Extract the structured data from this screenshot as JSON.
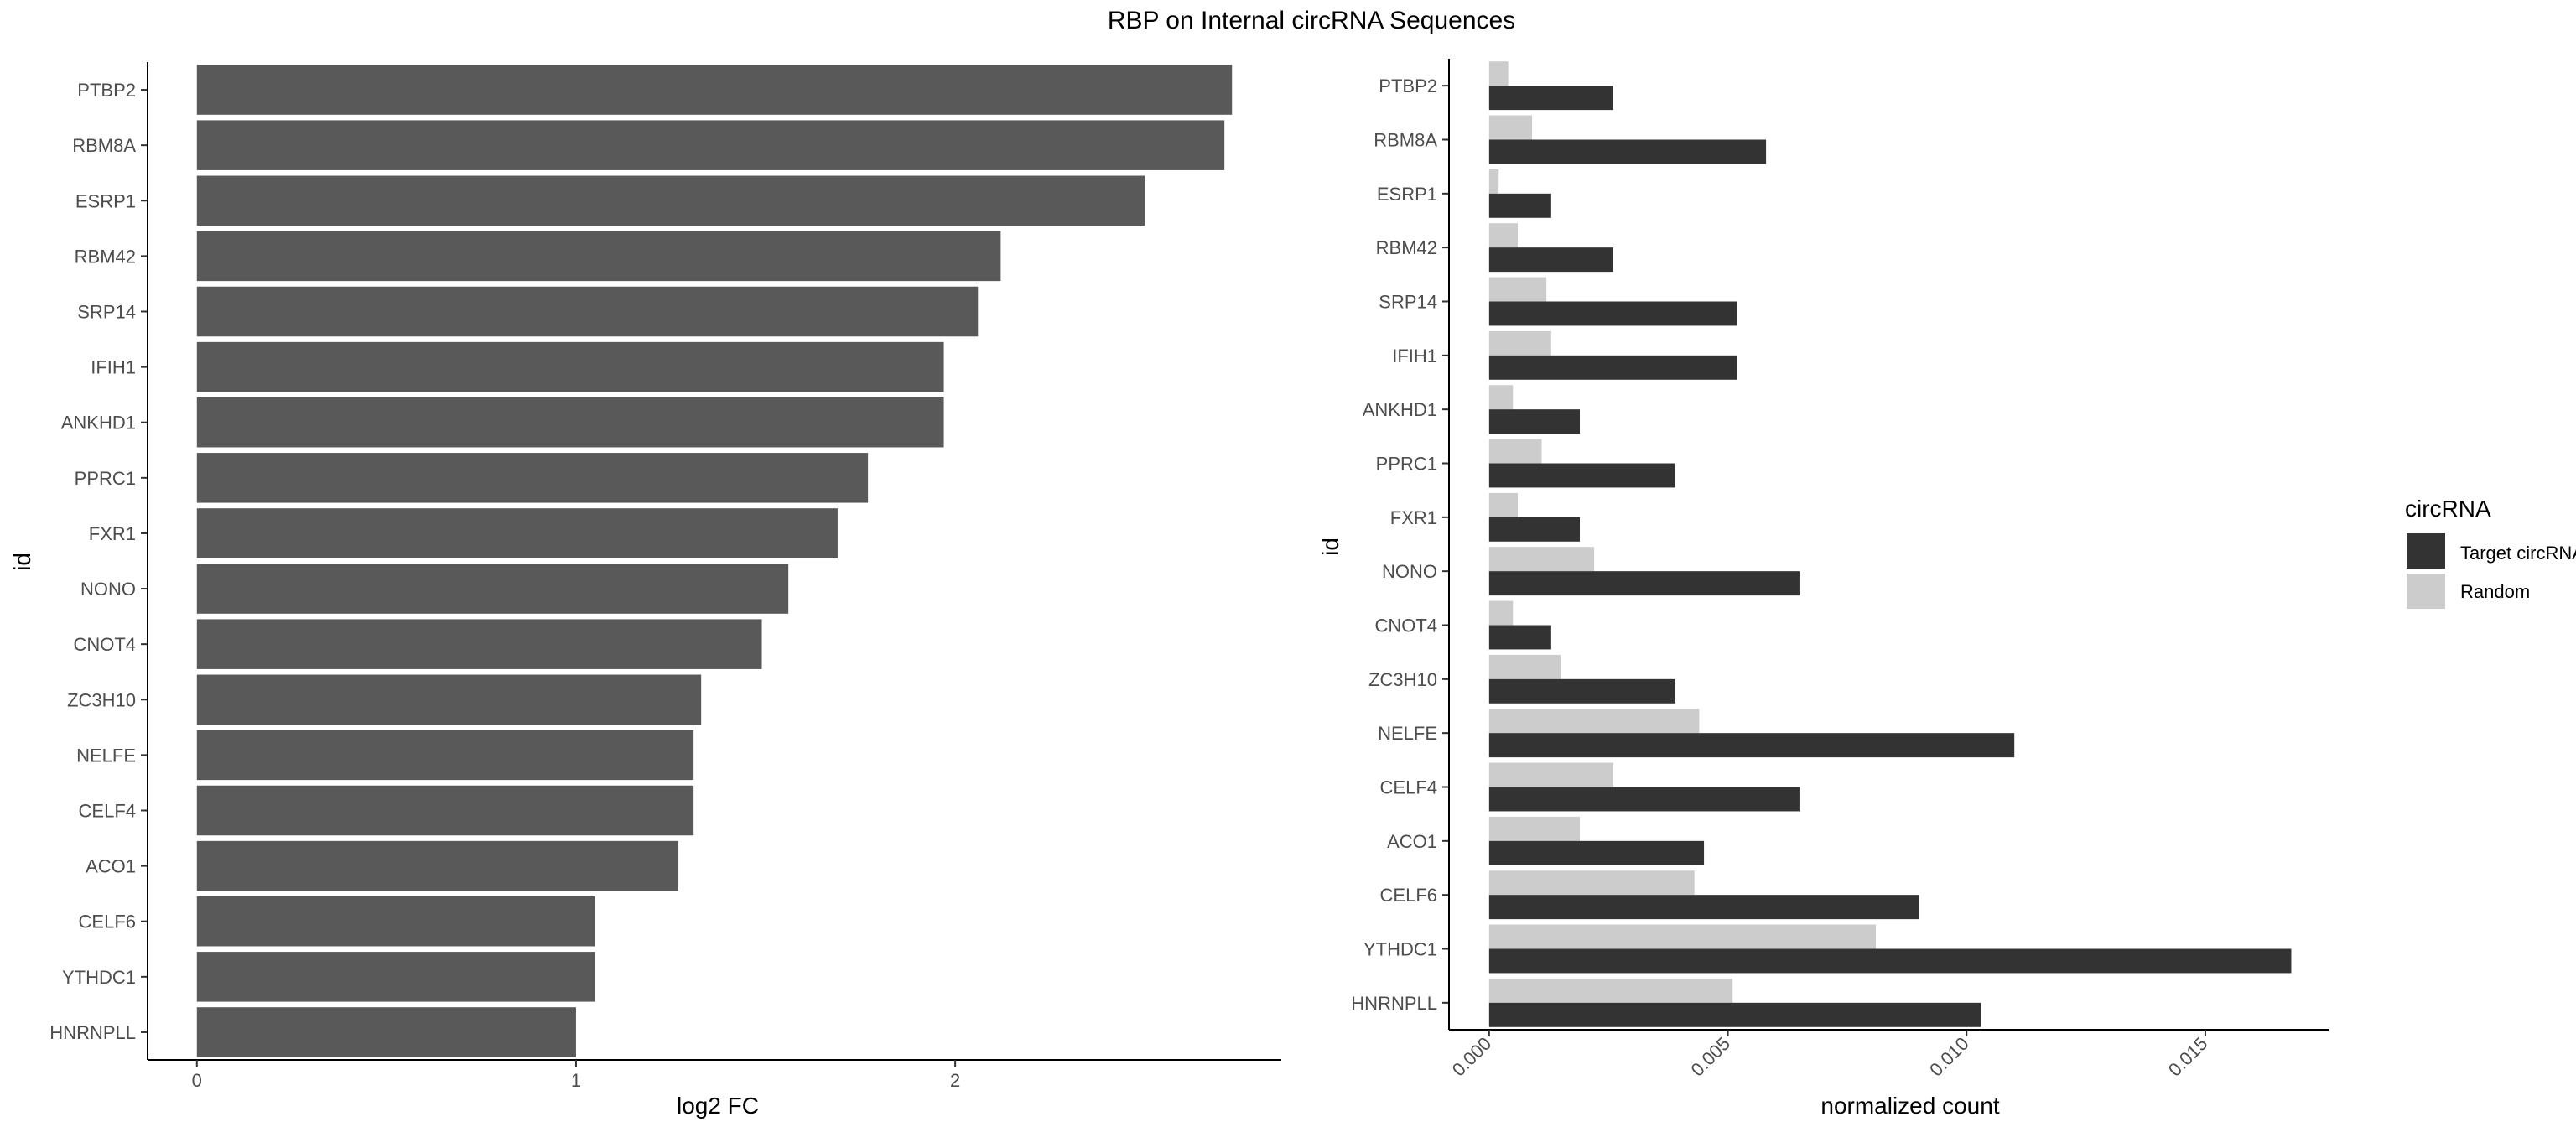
{
  "title": "RBP on Internal circRNA Sequences",
  "chart_data": [
    {
      "type": "bar",
      "orientation": "horizontal",
      "categories": [
        "PTBP2",
        "RBM8A",
        "ESRP1",
        "RBM42",
        "SRP14",
        "IFIH1",
        "ANKHD1",
        "PPRC1",
        "FXR1",
        "NONO",
        "CNOT4",
        "ZC3H10",
        "NELFE",
        "CELF4",
        "ACO1",
        "CELF6",
        "YTHDC1",
        "HNRNPLL"
      ],
      "values": [
        2.73,
        2.71,
        2.5,
        2.12,
        2.06,
        1.97,
        1.97,
        1.77,
        1.69,
        1.56,
        1.49,
        1.33,
        1.31,
        1.31,
        1.27,
        1.05,
        1.05,
        1.0
      ],
      "xlabel": "log2 FC",
      "ylabel": "id",
      "xlim": [
        -0.13,
        2.86
      ],
      "xticks": [
        0,
        1,
        2
      ],
      "tick_labels": [
        "0",
        "1",
        "2"
      ],
      "grid": false,
      "bar_color": "#595959"
    },
    {
      "type": "bar",
      "orientation": "horizontal",
      "grouped": true,
      "categories": [
        "PTBP2",
        "RBM8A",
        "ESRP1",
        "RBM42",
        "SRP14",
        "IFIH1",
        "ANKHD1",
        "PPRC1",
        "FXR1",
        "NONO",
        "CNOT4",
        "ZC3H10",
        "NELFE",
        "CELF4",
        "ACO1",
        "CELF6",
        "YTHDC1",
        "HNRNPLL"
      ],
      "series": [
        {
          "name": "Target circRNAs",
          "color": "#333333",
          "values": [
            0.0026,
            0.0058,
            0.0013,
            0.0026,
            0.0052,
            0.0052,
            0.0019,
            0.0039,
            0.0019,
            0.0065,
            0.0013,
            0.0039,
            0.011,
            0.0065,
            0.0045,
            0.009,
            0.0168,
            0.0103
          ]
        },
        {
          "name": "Random",
          "color": "#cccccc",
          "values": [
            0.0004,
            0.0009,
            0.0002,
            0.0006,
            0.0012,
            0.0013,
            0.0005,
            0.0011,
            0.0006,
            0.0022,
            0.0005,
            0.0015,
            0.0044,
            0.0026,
            0.0019,
            0.0043,
            0.0081,
            0.0051
          ]
        }
      ],
      "xlabel": "normalized count",
      "ylabel": "id",
      "xlim": [
        -0.00084,
        0.0176
      ],
      "xticks": [
        0,
        0.005,
        0.01,
        0.015
      ],
      "tick_labels": [
        "0.000",
        "0.005",
        "0.010",
        "0.015"
      ],
      "legend": {
        "title": "circRNA",
        "position": "right"
      },
      "grid": false
    }
  ]
}
